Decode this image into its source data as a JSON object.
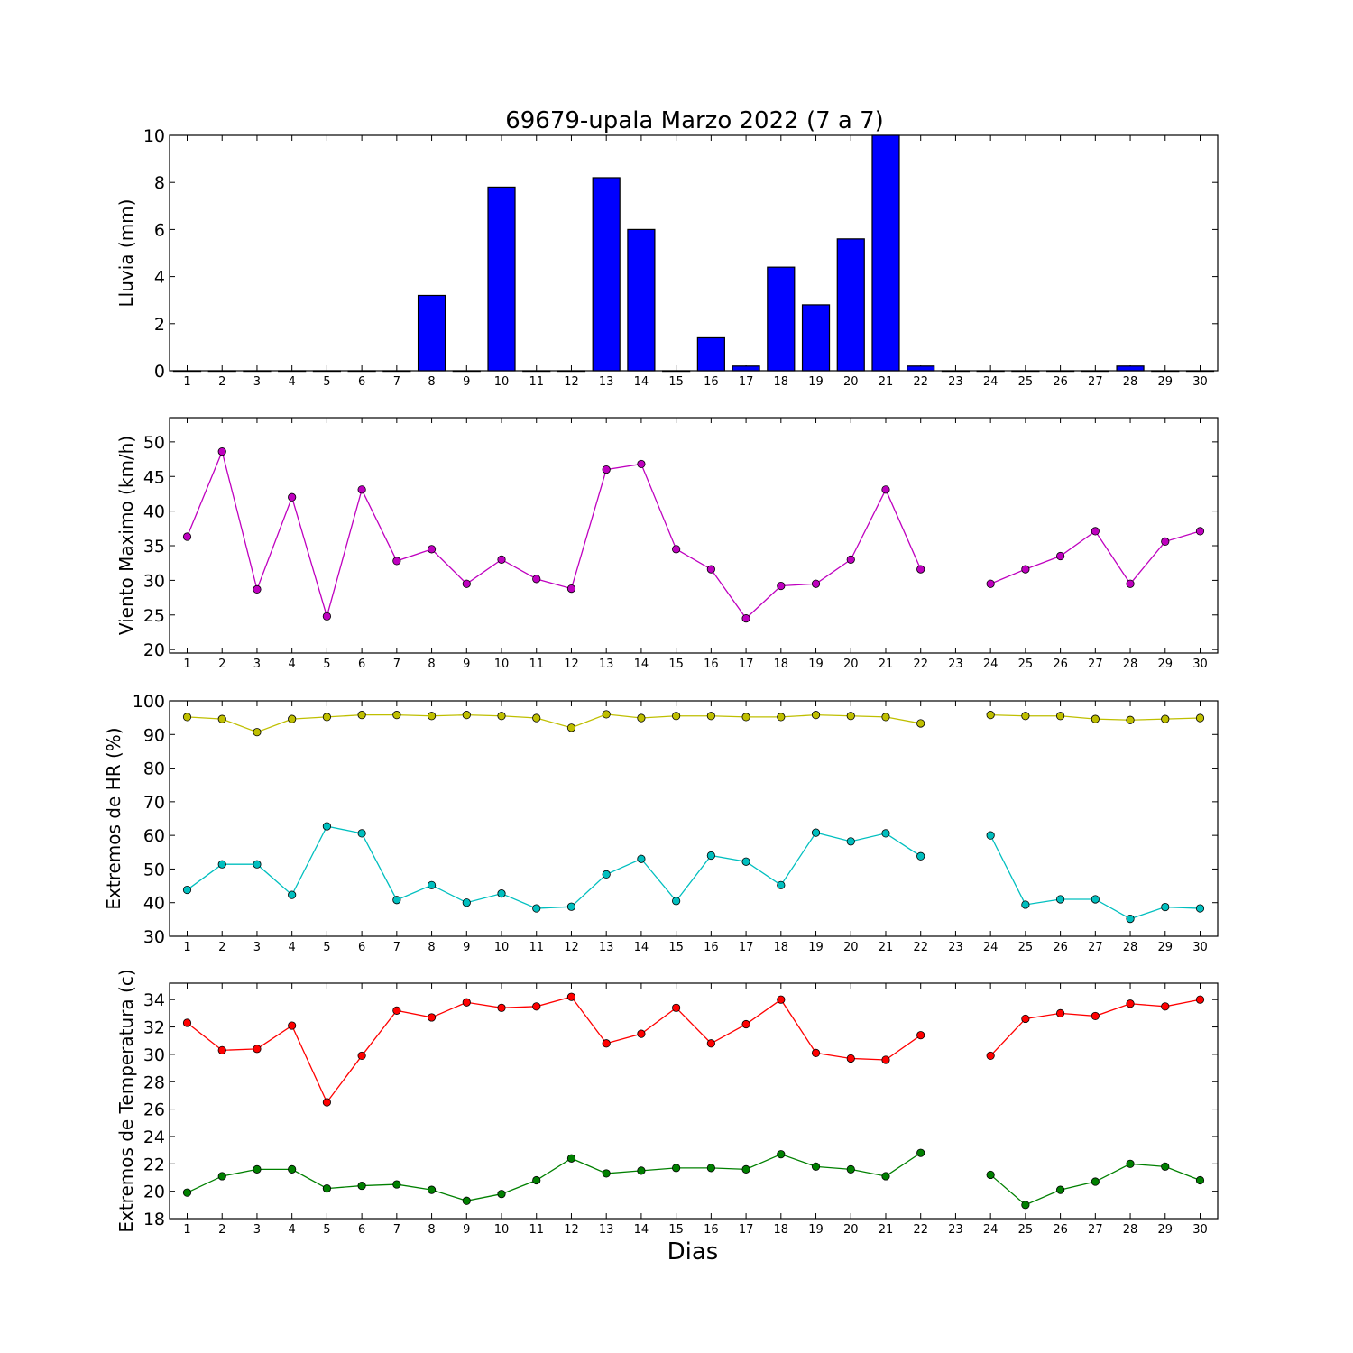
{
  "title": "69679-upala Marzo 2022  (7 a 7)",
  "xlabel": "Dias",
  "days": [
    1,
    2,
    3,
    4,
    5,
    6,
    7,
    8,
    9,
    10,
    11,
    12,
    13,
    14,
    15,
    16,
    17,
    18,
    19,
    20,
    21,
    22,
    23,
    24,
    25,
    26,
    27,
    28,
    29,
    30
  ],
  "chart_data": [
    {
      "type": "bar",
      "ylabel": "Lluvia (mm)",
      "ylim": [
        0,
        10
      ],
      "yticks": [
        0,
        2,
        4,
        6,
        8,
        10
      ],
      "color": "#0000ff",
      "categories": [
        1,
        2,
        3,
        4,
        5,
        6,
        7,
        8,
        9,
        10,
        11,
        12,
        13,
        14,
        15,
        16,
        17,
        18,
        19,
        20,
        21,
        22,
        23,
        24,
        25,
        26,
        27,
        28,
        29,
        30
      ],
      "values": [
        0,
        0,
        0,
        0,
        0,
        0,
        0,
        3.2,
        0,
        7.8,
        0,
        0,
        8.2,
        6.0,
        0,
        1.4,
        0.2,
        4.4,
        2.8,
        5.6,
        10.0,
        0.2,
        0,
        0,
        0,
        0,
        0,
        0.2,
        0,
        0
      ]
    },
    {
      "type": "line",
      "ylabel": "Viento Maximo (km/h)",
      "ylim": [
        19.5,
        53.5
      ],
      "yticks": [
        20,
        25,
        30,
        35,
        40,
        45,
        50
      ],
      "x": [
        1,
        2,
        3,
        4,
        5,
        6,
        7,
        8,
        9,
        10,
        11,
        12,
        13,
        14,
        15,
        16,
        17,
        18,
        19,
        20,
        21,
        22,
        23,
        24,
        25,
        26,
        27,
        28,
        29,
        30
      ],
      "series": [
        {
          "color": "#bf00bf",
          "values": [
            36.3,
            48.6,
            28.7,
            42.0,
            24.8,
            43.1,
            32.8,
            34.5,
            29.5,
            33.0,
            30.2,
            28.8,
            46.0,
            46.8,
            34.5,
            31.6,
            24.5,
            29.2,
            29.5,
            33.0,
            43.1,
            31.6,
            null,
            29.5,
            31.6,
            33.5,
            37.1,
            29.5,
            35.6,
            37.1
          ]
        }
      ]
    },
    {
      "type": "line",
      "ylabel": "Extremos de HR (%)",
      "ylim": [
        30,
        100
      ],
      "yticks": [
        30,
        40,
        50,
        60,
        70,
        80,
        90,
        100
      ],
      "x": [
        1,
        2,
        3,
        4,
        5,
        6,
        7,
        8,
        9,
        10,
        11,
        12,
        13,
        14,
        15,
        16,
        17,
        18,
        19,
        20,
        21,
        22,
        23,
        24,
        25,
        26,
        27,
        28,
        29,
        30
      ],
      "series": [
        {
          "color": "#bfbf00",
          "values": [
            95.2,
            94.6,
            90.7,
            94.6,
            95.2,
            95.8,
            95.8,
            95.5,
            95.8,
            95.5,
            94.9,
            92.0,
            96.0,
            94.9,
            95.5,
            95.5,
            95.2,
            95.2,
            95.8,
            95.5,
            95.2,
            93.3,
            null,
            95.8,
            95.5,
            95.5,
            94.6,
            94.3,
            94.6,
            94.9
          ]
        },
        {
          "color": "#00bfbf",
          "values": [
            43.8,
            51.4,
            51.4,
            42.3,
            62.7,
            60.6,
            40.8,
            45.2,
            40.0,
            42.7,
            38.3,
            38.8,
            48.4,
            53.0,
            40.5,
            54.0,
            52.2,
            45.2,
            60.8,
            58.2,
            60.6,
            53.8,
            null,
            60.0,
            39.4,
            41.0,
            41.0,
            35.2,
            38.7,
            38.3
          ]
        }
      ]
    },
    {
      "type": "line",
      "ylabel": "Extremos de Temperatura (c)",
      "ylim": [
        18,
        35.2
      ],
      "yticks": [
        18,
        20,
        22,
        24,
        26,
        28,
        30,
        32,
        34
      ],
      "x": [
        1,
        2,
        3,
        4,
        5,
        6,
        7,
        8,
        9,
        10,
        11,
        12,
        13,
        14,
        15,
        16,
        17,
        18,
        19,
        20,
        21,
        22,
        23,
        24,
        25,
        26,
        27,
        28,
        29,
        30
      ],
      "series": [
        {
          "color": "#ff0000",
          "values": [
            32.3,
            30.3,
            30.4,
            32.1,
            26.5,
            29.9,
            33.2,
            32.7,
            33.8,
            33.4,
            33.5,
            34.2,
            30.8,
            31.5,
            33.4,
            30.8,
            32.2,
            34.0,
            30.1,
            29.7,
            29.6,
            31.4,
            null,
            29.9,
            32.6,
            33.0,
            32.8,
            33.7,
            33.5,
            34.0
          ]
        },
        {
          "color": "#008000",
          "values": [
            19.9,
            21.1,
            21.6,
            21.6,
            20.2,
            20.4,
            20.5,
            20.1,
            19.3,
            19.8,
            20.8,
            22.4,
            21.3,
            21.5,
            21.7,
            21.7,
            21.6,
            22.7,
            21.8,
            21.6,
            21.1,
            22.8,
            null,
            21.2,
            19.0,
            20.1,
            20.7,
            22.0,
            21.8,
            20.8
          ]
        }
      ]
    }
  ]
}
